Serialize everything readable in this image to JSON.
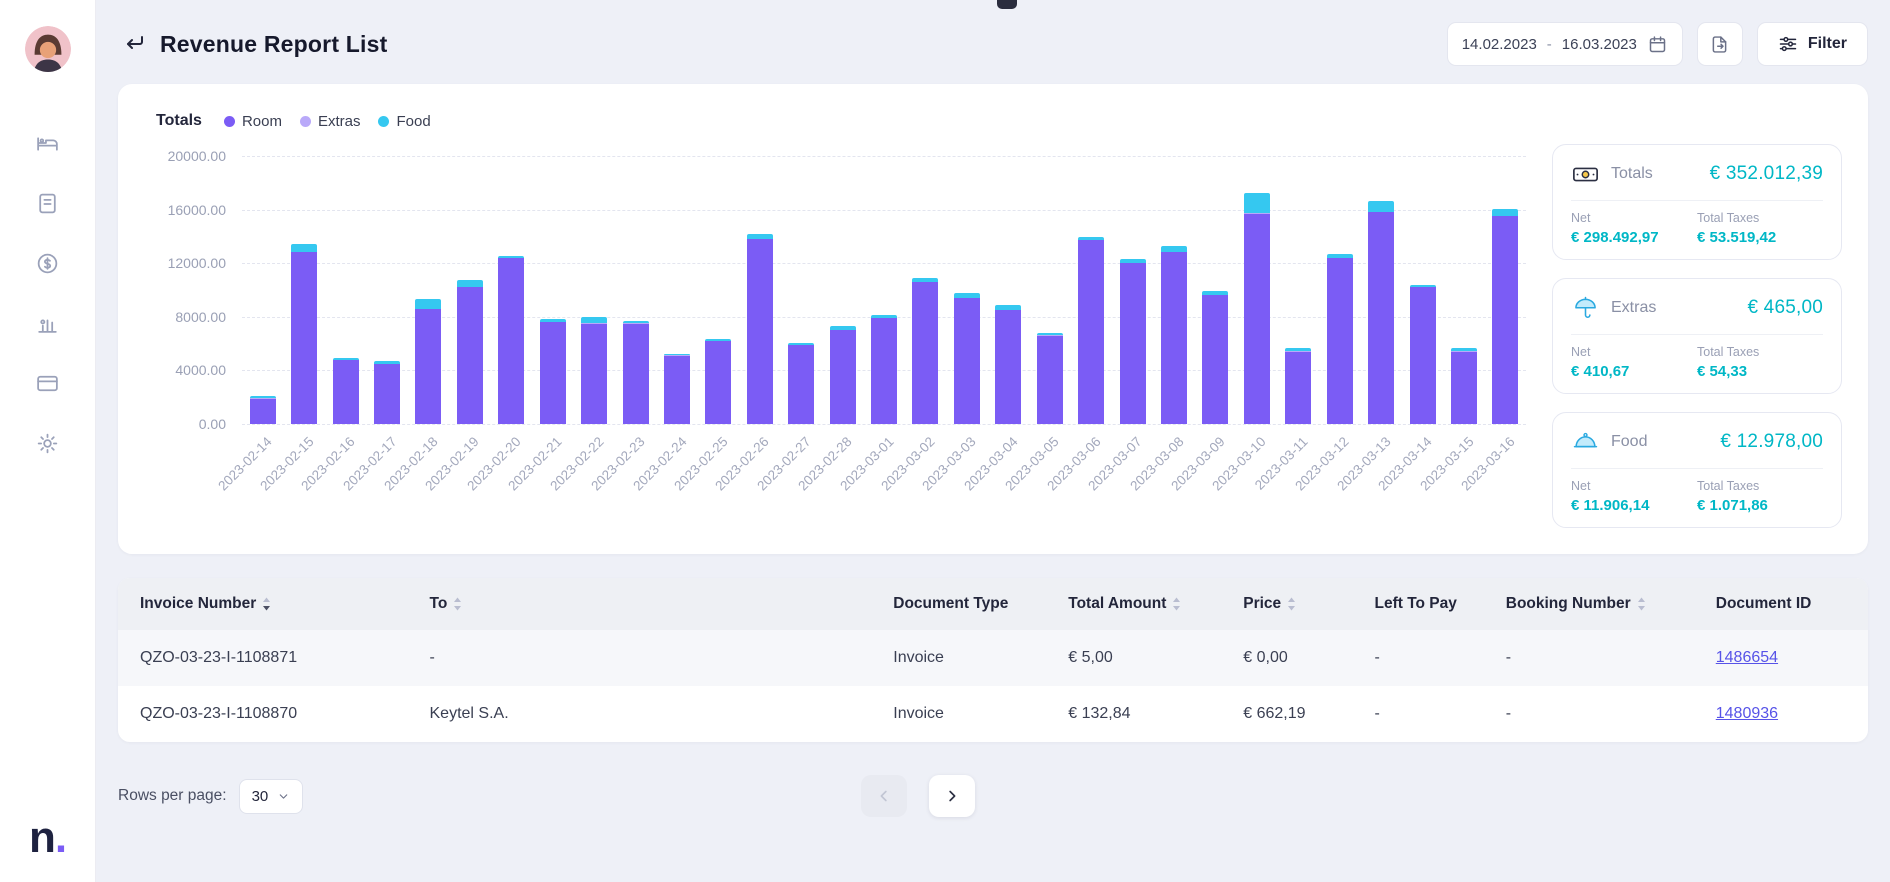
{
  "sidebar": {
    "icons": [
      "dashboard-icon",
      "reservations-icon",
      "finance-icon",
      "reports-icon",
      "payments-icon",
      "settings-icon"
    ],
    "logo_text": "n",
    "logo_dot": "."
  },
  "header": {
    "title": "Revenue Report List",
    "date_range": {
      "start": "14.02.2023",
      "separator": "-",
      "end": "16.03.2023"
    },
    "filter_label": "Filter"
  },
  "chart_data": {
    "type": "bar",
    "stacked": true,
    "title": "Totals",
    "legend_position": "top",
    "grid": "dashed-horizontal",
    "ylim": [
      0,
      20000
    ],
    "yticks": [
      "20000.00",
      "16000.00",
      "12000.00",
      "8000.00",
      "4000.00",
      "0.00"
    ],
    "legend": [
      {
        "name": "Room",
        "color": "#7b5cf5"
      },
      {
        "name": "Extras",
        "color": "#b9a9f9"
      },
      {
        "name": "Food",
        "color": "#35c8f0"
      }
    ],
    "categories": [
      "2023-02-14",
      "2023-02-15",
      "2023-02-16",
      "2023-02-17",
      "2023-02-18",
      "2023-02-19",
      "2023-02-20",
      "2023-02-21",
      "2023-02-22",
      "2023-02-23",
      "2023-02-24",
      "2023-02-25",
      "2023-02-26",
      "2023-02-27",
      "2023-02-28",
      "2023-03-01",
      "2023-03-02",
      "2023-03-03",
      "2023-03-04",
      "2023-03-05",
      "2023-03-06",
      "2023-03-07",
      "2023-03-08",
      "2023-03-09",
      "2023-03-10",
      "2023-03-11",
      "2023-03-12",
      "2023-03-13",
      "2023-03-14",
      "2023-03-15",
      "2023-03-16"
    ],
    "series": [
      {
        "name": "Room",
        "color": "#7b5cf5",
        "values": [
          1900,
          12800,
          4800,
          4500,
          8600,
          10200,
          12400,
          7600,
          7500,
          7500,
          5100,
          6200,
          13800,
          5900,
          7000,
          7900,
          10600,
          9400,
          8500,
          6600,
          13700,
          12000,
          12800,
          9600,
          15700,
          5400,
          12400,
          15800,
          10200,
          5400,
          15500
        ]
      },
      {
        "name": "Extras",
        "color": "#b9a9f9",
        "values": [
          15,
          15,
          15,
          15,
          15,
          15,
          15,
          15,
          15,
          15,
          15,
          15,
          15,
          15,
          15,
          15,
          15,
          15,
          15,
          15,
          15,
          15,
          15,
          15,
          15,
          15,
          15,
          15,
          15,
          15,
          15
        ]
      },
      {
        "name": "Food",
        "color": "#35c8f0",
        "values": [
          150,
          600,
          100,
          200,
          700,
          500,
          150,
          200,
          500,
          150,
          100,
          100,
          400,
          100,
          300,
          200,
          250,
          400,
          400,
          200,
          250,
          300,
          450,
          300,
          1500,
          250,
          250,
          800,
          150,
          250,
          500
        ]
      }
    ]
  },
  "summary_cards": [
    {
      "icon": "banknote-icon",
      "label": "Totals",
      "value": "€ 352.012,39",
      "net_label": "Net",
      "net_value": "€ 298.492,97",
      "taxes_label": "Total Taxes",
      "taxes_value": "€ 53.519,42"
    },
    {
      "icon": "umbrella-icon",
      "label": "Extras",
      "value": "€ 465,00",
      "net_label": "Net",
      "net_value": "€ 410,67",
      "taxes_label": "Total Taxes",
      "taxes_value": "€ 54,33"
    },
    {
      "icon": "cloche-icon",
      "label": "Food",
      "value": "€ 12.978,00",
      "net_label": "Net",
      "net_value": "€ 11.906,14",
      "taxes_label": "Total Taxes",
      "taxes_value": "€ 1.071,86"
    }
  ],
  "table": {
    "columns": [
      {
        "key": "invoice_number",
        "label": "Invoice Number",
        "sortable": true,
        "sorted": "desc",
        "width": "17%"
      },
      {
        "key": "to",
        "label": "To",
        "sortable": true,
        "width": "26.5%"
      },
      {
        "key": "document_type",
        "label": "Document Type",
        "sortable": false,
        "width": "10%"
      },
      {
        "key": "total_amount",
        "label": "Total Amount",
        "sortable": true,
        "width": "10%"
      },
      {
        "key": "price",
        "label": "Price",
        "sortable": true,
        "width": "7.5%"
      },
      {
        "key": "left_to_pay",
        "label": "Left To Pay",
        "sortable": false,
        "width": "7.5%"
      },
      {
        "key": "booking_number",
        "label": "Booking Number",
        "sortable": true,
        "width": "12%"
      },
      {
        "key": "document_id",
        "label": "Document ID",
        "sortable": false,
        "width": "9.5%"
      }
    ],
    "rows": [
      {
        "invoice_number": "QZO-03-23-I-1108871",
        "to": "-",
        "document_type": "Invoice",
        "total_amount": "€ 5,00",
        "price": "€ 0,00",
        "left_to_pay": "-",
        "booking_number": "-",
        "document_id": "1486654"
      },
      {
        "invoice_number": "QZO-03-23-I-1108870",
        "to": "Keytel S.A.",
        "document_type": "Invoice",
        "total_amount": "€ 132,84",
        "price": "€ 662,19",
        "left_to_pay": "-",
        "booking_number": "-",
        "document_id": "1480936"
      }
    ]
  },
  "footer": {
    "rows_per_page_label": "Rows per page:",
    "rows_per_page_value": "30",
    "prev_enabled": false,
    "next_enabled": true
  },
  "colors": {
    "accent_purple": "#7b5cf5",
    "accent_cyan": "#35c8f0",
    "accent_light_purple": "#b9a9f9",
    "money_teal": "#00b7c6",
    "link": "#5753e8",
    "background": "#eef0f7"
  }
}
